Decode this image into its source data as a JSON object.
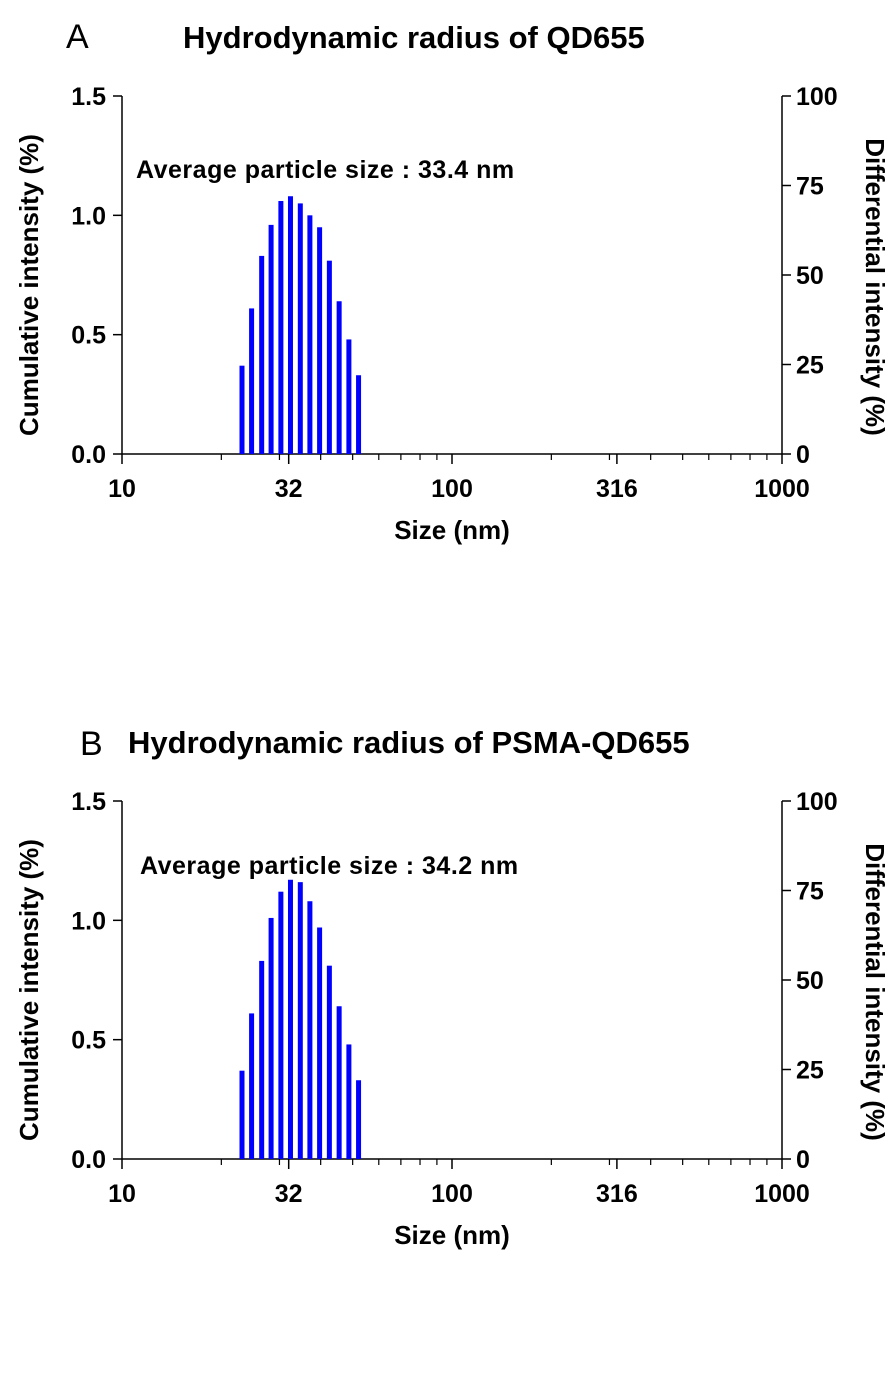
{
  "chart_data": [
    {
      "type": "bar",
      "panel_label": "A",
      "title": "Hydrodynamic radius of QD655",
      "annotation": "Average particle size : 33.4 nm",
      "xlabel": "Size (nm)",
      "ylabel_left": "Cumulative intensity (%)",
      "ylabel_right": "Differential intensity (%)",
      "x_scale": "log",
      "xlim": [
        10,
        1000
      ],
      "x_ticks": [
        "10",
        "32",
        "100",
        "316",
        "1000"
      ],
      "ylim_left": [
        0,
        1.5
      ],
      "y_ticks_left": [
        "0.0",
        "0.5",
        "1.0",
        "1.5"
      ],
      "ylim_right": [
        0,
        100
      ],
      "y_ticks_right": [
        "0",
        "25",
        "50",
        "75",
        "100"
      ],
      "bar_color": "#0000ff",
      "grid": false,
      "x": [
        23.1,
        24.7,
        26.5,
        28.3,
        30.3,
        32.4,
        34.7,
        37.1,
        39.7,
        42.5,
        45.5,
        48.7,
        52.1
      ],
      "values": [
        0.37,
        0.61,
        0.83,
        0.96,
        1.06,
        1.08,
        1.05,
        1.0,
        0.95,
        0.81,
        0.64,
        0.48,
        0.33
      ]
    },
    {
      "type": "bar",
      "panel_label": "B",
      "title": "Hydrodynamic radius of PSMA-QD655",
      "annotation": "Average particle size : 34.2 nm",
      "xlabel": "Size (nm)",
      "ylabel_left": "Cumulative intensity (%)",
      "ylabel_right": "Differential intensity (%)",
      "x_scale": "log",
      "xlim": [
        10,
        1000
      ],
      "x_ticks": [
        "10",
        "32",
        "100",
        "316",
        "1000"
      ],
      "ylim_left": [
        0,
        1.5
      ],
      "y_ticks_left": [
        "0.0",
        "0.5",
        "1.0",
        "1.5"
      ],
      "ylim_right": [
        0,
        100
      ],
      "y_ticks_right": [
        "0",
        "25",
        "50",
        "75",
        "100"
      ],
      "bar_color": "#0000ff",
      "grid": false,
      "x": [
        23.1,
        24.7,
        26.5,
        28.3,
        30.3,
        32.4,
        34.7,
        37.1,
        39.7,
        42.5,
        45.5,
        48.7,
        52.1
      ],
      "values": [
        0.37,
        0.61,
        0.83,
        1.01,
        1.12,
        1.17,
        1.16,
        1.08,
        0.97,
        0.81,
        0.64,
        0.48,
        0.33
      ]
    }
  ]
}
